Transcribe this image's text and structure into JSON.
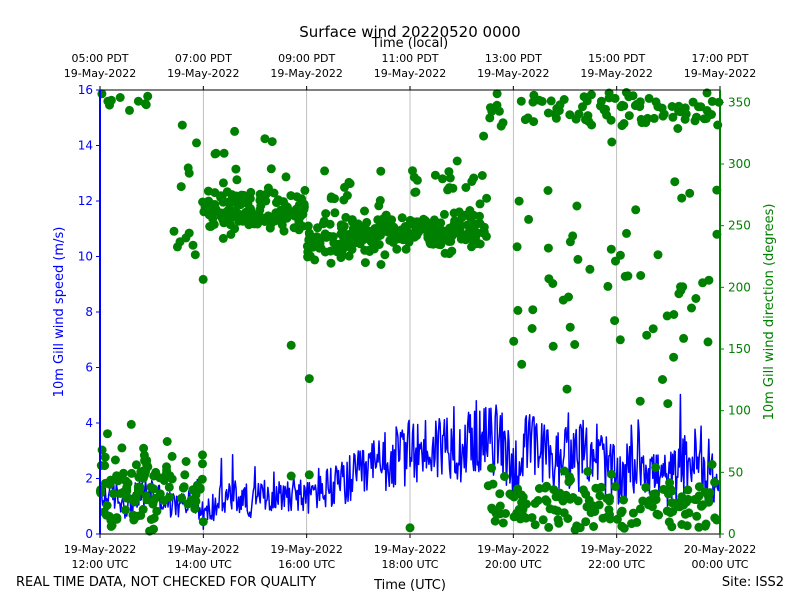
{
  "chart_data": {
    "type": "line+scatter",
    "title": "Surface wind 20220520 0000",
    "top_xlabel": "Time (local)",
    "xlabel": "Time (UTC)",
    "ylabel_left": "10m Gill wind speed (m/s)",
    "ylabel_right": "10m Gill wind direction (degrees)",
    "x_range_hours_utc": [
      12,
      24
    ],
    "ylim_left": [
      0,
      16
    ],
    "ylim_right": [
      0,
      360
    ],
    "grid": "vertical",
    "colors": {
      "speed": "#0000ff",
      "direction": "#008000",
      "grid": "#b0b0b0"
    },
    "bottom_ticks": [
      {
        "x": 12,
        "date": "19-May-2022",
        "time": "12:00 UTC"
      },
      {
        "x": 14,
        "date": "19-May-2022",
        "time": "14:00 UTC"
      },
      {
        "x": 16,
        "date": "19-May-2022",
        "time": "16:00 UTC"
      },
      {
        "x": 18,
        "date": "19-May-2022",
        "time": "18:00 UTC"
      },
      {
        "x": 20,
        "date": "19-May-2022",
        "time": "20:00 UTC"
      },
      {
        "x": 22,
        "date": "19-May-2022",
        "time": "22:00 UTC"
      },
      {
        "x": 24,
        "date": "20-May-2022",
        "time": "00:00 UTC"
      }
    ],
    "top_ticks": [
      {
        "x": 12,
        "time": "05:00 PDT",
        "date": "19-May-2022"
      },
      {
        "x": 14,
        "time": "07:00 PDT",
        "date": "19-May-2022"
      },
      {
        "x": 16,
        "time": "09:00 PDT",
        "date": "19-May-2022"
      },
      {
        "x": 18,
        "time": "11:00 PDT",
        "date": "19-May-2022"
      },
      {
        "x": 20,
        "time": "13:00 PDT",
        "date": "19-May-2022"
      },
      {
        "x": 22,
        "time": "15:00 PDT",
        "date": "19-May-2022"
      },
      {
        "x": 24,
        "time": "17:00 PDT",
        "date": "19-May-2022"
      }
    ],
    "left_ticks": [
      "0",
      "2",
      "4",
      "6",
      "8",
      "10",
      "12",
      "14",
      "16"
    ],
    "right_ticks": [
      "0",
      "50",
      "100",
      "150",
      "200",
      "250",
      "300",
      "350"
    ],
    "speed_series": {
      "name": "10m Gill wind speed",
      "hours": [
        12.0,
        12.25,
        12.5,
        12.75,
        13.0,
        13.25,
        13.5,
        13.75,
        14.0,
        14.25,
        14.5,
        14.75,
        15.0,
        15.25,
        15.5,
        15.75,
        16.0,
        16.25,
        16.5,
        16.75,
        17.0,
        17.25,
        17.5,
        17.75,
        18.0,
        18.25,
        18.5,
        18.75,
        19.0,
        19.25,
        19.5,
        19.75,
        20.0,
        20.25,
        20.5,
        20.75,
        21.0,
        21.25,
        21.5,
        21.75,
        22.0,
        22.25,
        22.5,
        22.75,
        23.0,
        23.25,
        23.5,
        23.75,
        24.0
      ],
      "values": [
        1.2,
        1.4,
        1.0,
        1.3,
        1.5,
        1.1,
        0.9,
        1.2,
        0.6,
        1.0,
        1.3,
        1.2,
        1.1,
        1.4,
        1.3,
        1.5,
        1.2,
        1.6,
        1.5,
        1.8,
        1.9,
        2.2,
        2.4,
        2.6,
        2.8,
        2.9,
        3.0,
        3.2,
        2.9,
        3.4,
        3.2,
        3.3,
        2.2,
        3.0,
        2.8,
        2.4,
        2.7,
        2.6,
        3.0,
        2.5,
        1.8,
        2.2,
        2.6,
        2.0,
        1.8,
        2.3,
        2.6,
        2.0,
        1.6
      ],
      "noise": [
        0.5,
        0.6,
        0.5,
        0.6,
        0.6,
        0.5,
        0.5,
        0.6,
        0.5,
        0.6,
        0.7,
        0.6,
        0.6,
        0.6,
        0.6,
        0.7,
        0.6,
        0.8,
        0.8,
        0.9,
        1.0,
        1.1,
        1.1,
        1.2,
        1.2,
        1.2,
        1.3,
        1.3,
        1.2,
        1.3,
        1.3,
        1.3,
        1.2,
        1.3,
        1.3,
        1.3,
        1.2,
        1.2,
        1.3,
        1.2,
        1.1,
        1.1,
        1.2,
        1.1,
        1.0,
        1.1,
        1.2,
        1.1,
        0.8
      ]
    },
    "direction_series": {
      "name": "10m Gill wind direction",
      "clusters": [
        {
          "h": [
            12.0,
            13.0
          ],
          "center": 40,
          "spread": 30,
          "n": 70
        },
        {
          "h": [
            12.0,
            13.0
          ],
          "center": 350,
          "spread": 8,
          "n": 10
        },
        {
          "h": [
            13.0,
            14.0
          ],
          "center": 35,
          "spread": 25,
          "n": 40
        },
        {
          "h": [
            13.4,
            14.0
          ],
          "center": 250,
          "spread": 60,
          "n": 14
        },
        {
          "h": [
            14.0,
            16.0
          ],
          "center": 262,
          "spread": 14,
          "n": 150
        },
        {
          "h": [
            14.0,
            15.8
          ],
          "center": 300,
          "spread": 30,
          "n": 12
        },
        {
          "h": [
            16.0,
            17.5
          ],
          "center": 237,
          "spread": 14,
          "n": 110
        },
        {
          "h": [
            16.0,
            17.5
          ],
          "center": 270,
          "spread": 20,
          "n": 20
        },
        {
          "h": [
            17.5,
            19.5
          ],
          "center": 245,
          "spread": 12,
          "n": 150
        },
        {
          "h": [
            18.0,
            19.5
          ],
          "center": 285,
          "spread": 25,
          "n": 20
        },
        {
          "h": [
            19.5,
            24.0
          ],
          "center": 25,
          "spread": 20,
          "n": 150
        },
        {
          "h": [
            19.5,
            24.0
          ],
          "center": 345,
          "spread": 15,
          "n": 90
        },
        {
          "h": [
            20.0,
            24.0
          ],
          "center": 200,
          "spread": 90,
          "n": 60
        }
      ],
      "outliers": [
        {
          "hour": 18.0,
          "deg": 5
        },
        {
          "hour": 13.3,
          "deg": 75
        },
        {
          "hour": 14.0,
          "deg": 10
        },
        {
          "hour": 15.7,
          "deg": 47
        },
        {
          "hour": 16.05,
          "deg": 48
        },
        {
          "hour": 15.7,
          "deg": 153
        },
        {
          "hour": 16.05,
          "deg": 126
        }
      ]
    }
  },
  "footer": {
    "left_note": "REAL TIME DATA, NOT CHECKED FOR QUALITY",
    "site": "Site: ISS2"
  }
}
